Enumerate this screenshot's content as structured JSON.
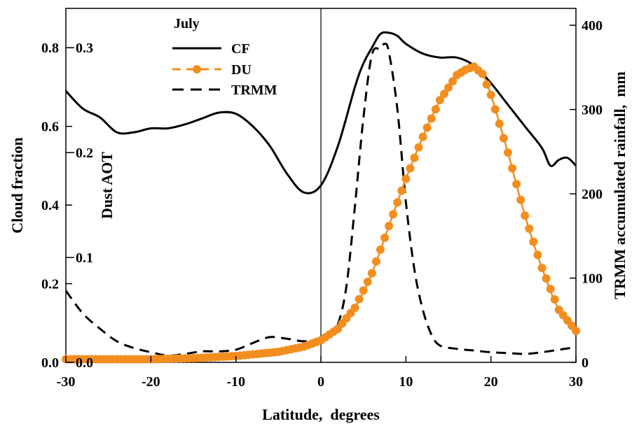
{
  "chart_data": {
    "type": "line",
    "legend_title": "July",
    "legend_position": "top-left",
    "grid": false,
    "xlabel": "Latitude,  degrees",
    "ylabel_left": "Cloud fraction",
    "ylabel_inner": "Dust AOT",
    "ylabel_right": "TRMM accumulated rainfall,  mm",
    "xlim": [
      -30,
      30
    ],
    "xticks": [
      "-30",
      "-20",
      "-10",
      "0",
      "10",
      "20",
      "30"
    ],
    "ylim_left": [
      0.0,
      0.9
    ],
    "yticks_left": [
      "0.0",
      "0.2",
      "0.4",
      "0.6",
      "0.8"
    ],
    "ylim_inner": [
      0.0,
      0.3375
    ],
    "yticks_inner": [
      "0.0",
      "0.1",
      "0.2",
      "0.3"
    ],
    "ylim_right": [
      0,
      420
    ],
    "yticks_right": [
      "0",
      "100",
      "200",
      "300",
      "400"
    ],
    "reference_line_x": 0,
    "series": [
      {
        "name": "CF",
        "axis": "left",
        "style": "solid",
        "color": "#000000",
        "x": [
          -30,
          -28,
          -26,
          -24,
          -22,
          -20,
          -18,
          -16,
          -14,
          -12,
          -10,
          -8,
          -6,
          -4,
          -2,
          0,
          2,
          4,
          5,
          6,
          7,
          8,
          9,
          10,
          12,
          14,
          16,
          18,
          20,
          22,
          24,
          26,
          27,
          28,
          29,
          30
        ],
        "y": [
          0.69,
          0.645,
          0.623,
          0.585,
          0.585,
          0.595,
          0.595,
          0.605,
          0.62,
          0.635,
          0.632,
          0.6,
          0.55,
          0.48,
          0.432,
          0.45,
          0.55,
          0.7,
          0.76,
          0.8,
          0.835,
          0.838,
          0.83,
          0.81,
          0.785,
          0.775,
          0.775,
          0.755,
          0.71,
          0.655,
          0.6,
          0.545,
          0.5,
          0.515,
          0.52,
          0.5
        ]
      },
      {
        "name": "DU",
        "axis": "inner",
        "style": "dashed-dotted",
        "color": "#F28E1F",
        "x": [
          -30,
          -25,
          -20,
          -15,
          -10,
          -5,
          -2,
          0,
          2,
          4,
          6,
          8,
          10,
          12,
          14,
          16,
          17,
          18,
          19,
          20,
          22,
          24,
          26,
          28,
          30
        ],
        "y": [
          0.003,
          0.003,
          0.003,
          0.004,
          0.006,
          0.01,
          0.015,
          0.021,
          0.032,
          0.052,
          0.085,
          0.13,
          0.175,
          0.215,
          0.25,
          0.274,
          0.279,
          0.282,
          0.275,
          0.255,
          0.2,
          0.14,
          0.09,
          0.05,
          0.03
        ]
      },
      {
        "name": "TRMM",
        "axis": "right",
        "style": "dashed",
        "color": "#000000",
        "x": [
          -30,
          -28,
          -26,
          -24,
          -22,
          -20,
          -18,
          -16,
          -14,
          -12,
          -10,
          -8,
          -6,
          -4,
          -2,
          0,
          1,
          2,
          3,
          4,
          5,
          6,
          7,
          7.5,
          8,
          9,
          10,
          11,
          12,
          13,
          14,
          16,
          18,
          20,
          22,
          24,
          26,
          28,
          30
        ],
        "y": [
          85,
          58,
          40,
          25,
          17,
          12,
          8,
          10,
          13,
          13,
          15,
          23,
          30,
          28,
          25,
          28,
          30,
          45,
          90,
          185,
          290,
          365,
          372,
          378,
          368,
          300,
          190,
          110,
          62,
          33,
          20,
          16,
          14,
          12,
          11,
          10,
          12,
          15,
          18
        ]
      }
    ]
  }
}
